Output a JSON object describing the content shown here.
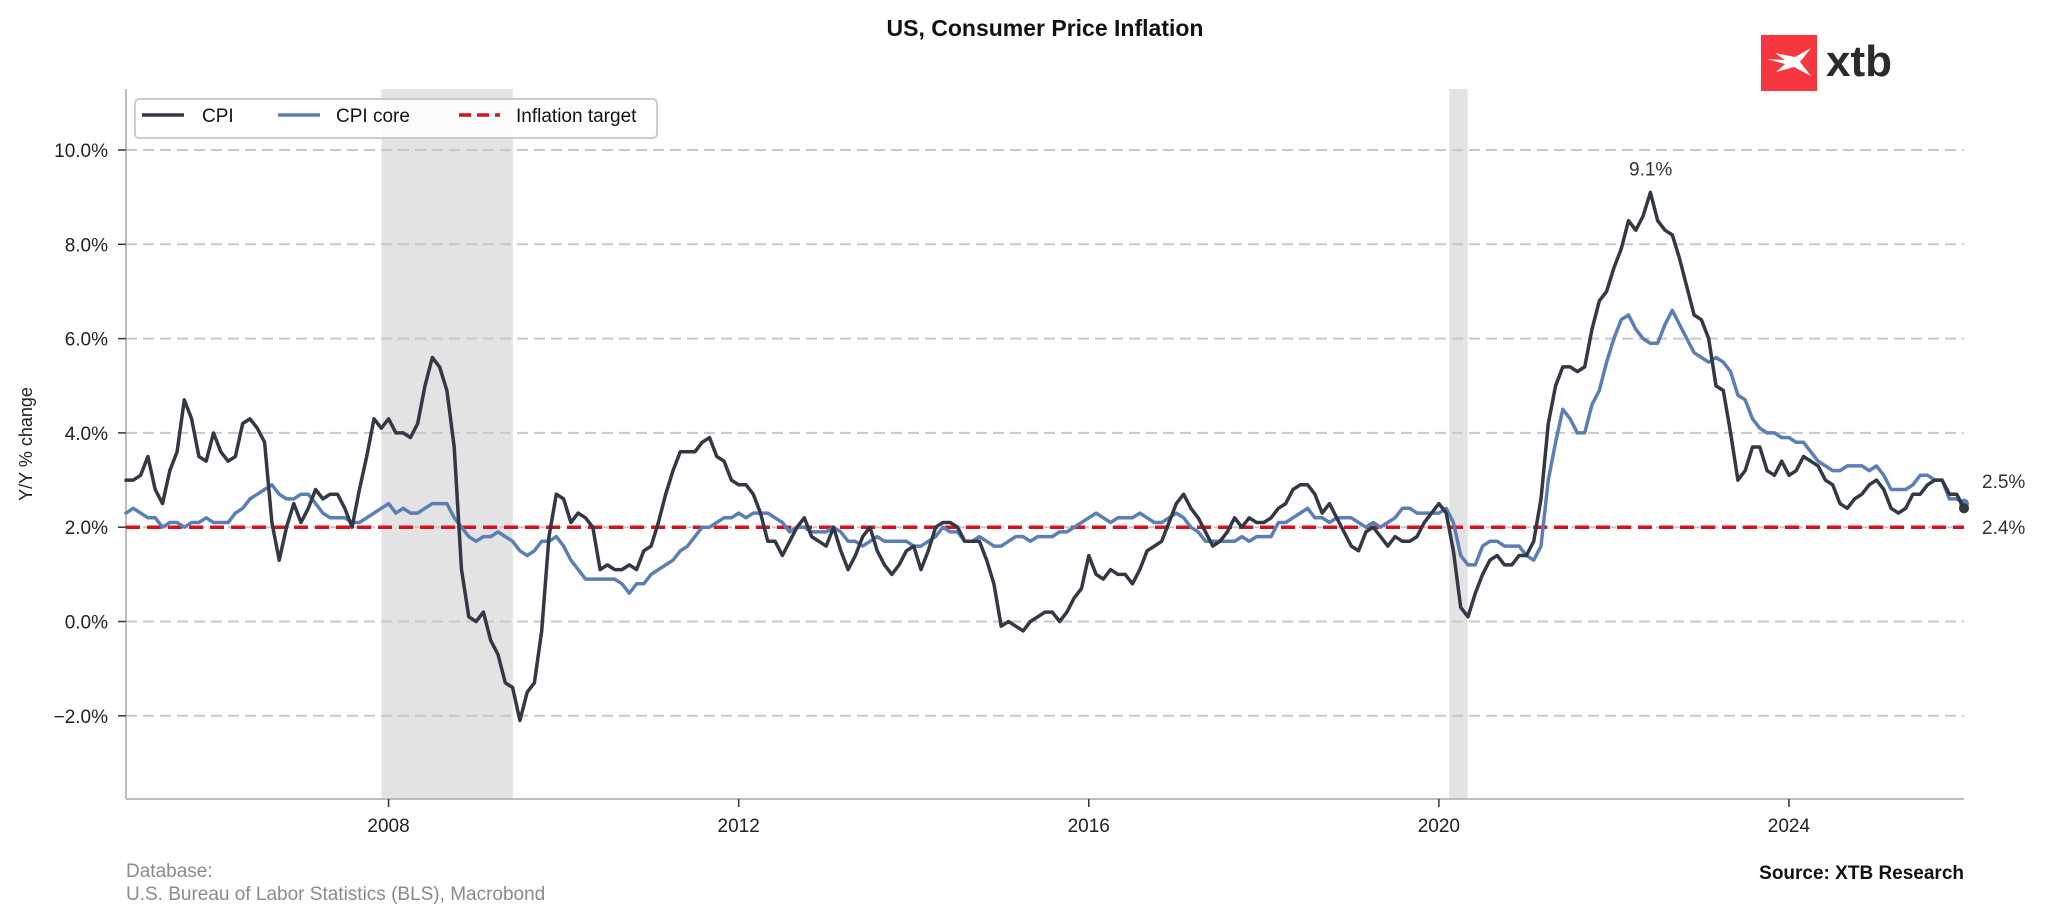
{
  "chart_data": {
    "type": "line",
    "title": "US, Consumer Price Inflation",
    "xlabel": "",
    "ylabel": "Y/Y % change",
    "x_start": "2005-01",
    "x_end": "2026-01",
    "frequency": "monthly",
    "xlim": [
      2005.0,
      2026.0
    ],
    "ylim": [
      -3.8,
      11.3
    ],
    "x_ticks": [
      2008,
      2012,
      2016,
      2020,
      2024
    ],
    "x_tick_labels": [
      "2008",
      "2012",
      "2016",
      "2020",
      "2024"
    ],
    "y_ticks": [
      -2,
      0,
      2,
      4,
      6,
      8,
      10
    ],
    "y_tick_labels": [
      "−2.0%",
      "0.0%",
      "2.0%",
      "4.0%",
      "6.0%",
      "8.0%",
      "10.0%"
    ],
    "grid": "horizontal-dashed",
    "legend_position": "top-left",
    "series": [
      {
        "name": "CPI",
        "color": "#323844",
        "style": "solid",
        "values": [
          3.0,
          3.0,
          3.1,
          3.5,
          2.8,
          2.5,
          3.2,
          3.6,
          4.7,
          4.3,
          3.5,
          3.4,
          4.0,
          3.6,
          3.4,
          3.5,
          4.2,
          4.3,
          4.1,
          3.8,
          2.1,
          1.3,
          2.0,
          2.5,
          2.1,
          2.4,
          2.8,
          2.6,
          2.7,
          2.7,
          2.4,
          2.0,
          2.8,
          3.5,
          4.3,
          4.1,
          4.3,
          4.0,
          4.0,
          3.9,
          4.2,
          5.0,
          5.6,
          5.4,
          4.9,
          3.7,
          1.1,
          0.1,
          0.0,
          0.2,
          -0.4,
          -0.7,
          -1.3,
          -1.4,
          -2.1,
          -1.5,
          -1.3,
          -0.2,
          1.8,
          2.7,
          2.6,
          2.1,
          2.3,
          2.2,
          2.0,
          1.1,
          1.2,
          1.1,
          1.1,
          1.2,
          1.1,
          1.5,
          1.6,
          2.1,
          2.7,
          3.2,
          3.6,
          3.6,
          3.6,
          3.8,
          3.9,
          3.5,
          3.4,
          3.0,
          2.9,
          2.9,
          2.7,
          2.3,
          1.7,
          1.7,
          1.4,
          1.7,
          2.0,
          2.2,
          1.8,
          1.7,
          1.6,
          2.0,
          1.5,
          1.1,
          1.4,
          1.8,
          2.0,
          1.5,
          1.2,
          1.0,
          1.2,
          1.5,
          1.6,
          1.1,
          1.5,
          2.0,
          2.1,
          2.1,
          2.0,
          1.7,
          1.7,
          1.7,
          1.3,
          0.8,
          -0.1,
          0.0,
          -0.1,
          -0.2,
          0.0,
          0.1,
          0.2,
          0.2,
          0.0,
          0.2,
          0.5,
          0.7,
          1.4,
          1.0,
          0.9,
          1.1,
          1.0,
          1.0,
          0.8,
          1.1,
          1.5,
          1.6,
          1.7,
          2.1,
          2.5,
          2.7,
          2.4,
          2.2,
          1.9,
          1.6,
          1.7,
          1.9,
          2.2,
          2.0,
          2.2,
          2.1,
          2.1,
          2.2,
          2.4,
          2.5,
          2.8,
          2.9,
          2.9,
          2.7,
          2.3,
          2.5,
          2.2,
          1.9,
          1.6,
          1.5,
          1.9,
          2.0,
          1.8,
          1.6,
          1.8,
          1.7,
          1.7,
          1.8,
          2.1,
          2.3,
          2.5,
          2.3,
          1.5,
          0.3,
          0.1,
          0.6,
          1.0,
          1.3,
          1.4,
          1.2,
          1.2,
          1.4,
          1.4,
          1.7,
          2.6,
          4.2,
          5.0,
          5.4,
          5.4,
          5.3,
          5.4,
          6.2,
          6.8,
          7.0,
          7.5,
          7.9,
          8.5,
          8.3,
          8.6,
          9.1,
          8.5,
          8.3,
          8.2,
          7.7,
          7.1,
          6.5,
          6.4,
          6.0,
          5.0,
          4.9,
          4.0,
          3.0,
          3.2,
          3.7,
          3.7,
          3.2,
          3.1,
          3.4,
          3.1,
          3.2,
          3.5,
          3.4,
          3.3,
          3.0,
          2.9,
          2.5,
          2.4,
          2.6,
          2.7,
          2.9,
          3.0,
          2.8,
          2.4,
          2.3,
          2.4,
          2.7,
          2.7,
          2.9,
          3.0,
          3.0,
          2.7,
          2.7,
          2.4
        ]
      },
      {
        "name": "CPI core",
        "color": "#5b7fb5",
        "style": "solid",
        "values": [
          2.3,
          2.4,
          2.3,
          2.2,
          2.2,
          2.0,
          2.1,
          2.1,
          2.0,
          2.1,
          2.1,
          2.2,
          2.1,
          2.1,
          2.1,
          2.3,
          2.4,
          2.6,
          2.7,
          2.8,
          2.9,
          2.7,
          2.6,
          2.6,
          2.7,
          2.7,
          2.5,
          2.3,
          2.2,
          2.2,
          2.2,
          2.1,
          2.1,
          2.2,
          2.3,
          2.4,
          2.5,
          2.3,
          2.4,
          2.3,
          2.3,
          2.4,
          2.5,
          2.5,
          2.5,
          2.2,
          2.0,
          1.8,
          1.7,
          1.8,
          1.8,
          1.9,
          1.8,
          1.7,
          1.5,
          1.4,
          1.5,
          1.7,
          1.7,
          1.8,
          1.6,
          1.3,
          1.1,
          0.9,
          0.9,
          0.9,
          0.9,
          0.9,
          0.8,
          0.6,
          0.8,
          0.8,
          1.0,
          1.1,
          1.2,
          1.3,
          1.5,
          1.6,
          1.8,
          2.0,
          2.0,
          2.1,
          2.2,
          2.2,
          2.3,
          2.2,
          2.3,
          2.3,
          2.3,
          2.2,
          2.1,
          1.9,
          2.0,
          2.0,
          1.9,
          1.9,
          1.9,
          2.0,
          1.9,
          1.7,
          1.7,
          1.6,
          1.7,
          1.8,
          1.7,
          1.7,
          1.7,
          1.7,
          1.6,
          1.6,
          1.7,
          1.8,
          2.0,
          1.9,
          1.9,
          1.7,
          1.7,
          1.8,
          1.7,
          1.6,
          1.6,
          1.7,
          1.8,
          1.8,
          1.7,
          1.8,
          1.8,
          1.8,
          1.9,
          1.9,
          2.0,
          2.1,
          2.2,
          2.3,
          2.2,
          2.1,
          2.2,
          2.2,
          2.2,
          2.3,
          2.2,
          2.1,
          2.1,
          2.2,
          2.3,
          2.2,
          2.0,
          1.9,
          1.7,
          1.7,
          1.7,
          1.7,
          1.7,
          1.8,
          1.7,
          1.8,
          1.8,
          1.8,
          2.1,
          2.1,
          2.2,
          2.3,
          2.4,
          2.2,
          2.2,
          2.1,
          2.2,
          2.2,
          2.2,
          2.1,
          2.0,
          2.1,
          2.0,
          2.1,
          2.2,
          2.4,
          2.4,
          2.3,
          2.3,
          2.3,
          2.3,
          2.4,
          2.1,
          1.4,
          1.2,
          1.2,
          1.6,
          1.7,
          1.7,
          1.6,
          1.6,
          1.6,
          1.4,
          1.3,
          1.6,
          3.0,
          3.8,
          4.5,
          4.3,
          4.0,
          4.0,
          4.6,
          4.9,
          5.5,
          6.0,
          6.4,
          6.5,
          6.2,
          6.0,
          5.9,
          5.9,
          6.3,
          6.6,
          6.3,
          6.0,
          5.7,
          5.6,
          5.5,
          5.6,
          5.5,
          5.3,
          4.8,
          4.7,
          4.3,
          4.1,
          4.0,
          4.0,
          3.9,
          3.9,
          3.8,
          3.8,
          3.6,
          3.4,
          3.3,
          3.2,
          3.2,
          3.3,
          3.3,
          3.3,
          3.2,
          3.3,
          3.1,
          2.8,
          2.8,
          2.8,
          2.9,
          3.1,
          3.1,
          3.0,
          3.0,
          2.6,
          2.6,
          2.5
        ]
      },
      {
        "name": "Inflation target",
        "color": "#d7101e",
        "style": "dashed",
        "value": 2.0
      }
    ],
    "shaded_periods": [
      {
        "label": "recession",
        "start": 2007.92,
        "end": 2009.42,
        "color": "#e3e3e3"
      },
      {
        "label": "recession",
        "start": 2020.12,
        "end": 2020.33,
        "color": "#e3e3e3"
      }
    ],
    "annotations": [
      {
        "text": "9.1%",
        "series": "CPI",
        "x": 2022.42,
        "y": 9.1,
        "position": "above-peak"
      },
      {
        "text": "2.5%",
        "series": "CPI core",
        "position": "right-end"
      },
      {
        "text": "2.4%",
        "series": "CPI",
        "position": "right-end"
      }
    ]
  },
  "footer": {
    "database_label": "Database:",
    "database_source": "U.S. Bureau of Labor Statistics (BLS), Macrobond",
    "source": "Source: XTB Research"
  },
  "logo": {
    "text": "xtb",
    "brand_color": "#f6373f"
  }
}
